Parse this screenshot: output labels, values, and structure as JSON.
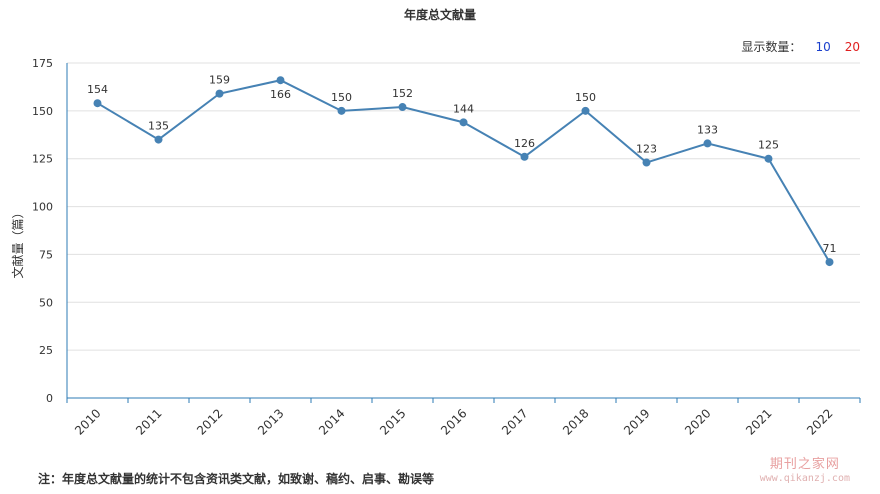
{
  "selector": {
    "label": "显示数量：",
    "options": [
      "10",
      "20"
    ],
    "colors": [
      "#1a3fcc",
      "#e02020"
    ]
  },
  "footnote": "注：年度总文献量的统计不包含资讯类文献，如致谢、稿约、启事、勘误等",
  "watermark": {
    "cn": "期刊之家网",
    "url": "www.qikanzj.com"
  },
  "chart_data": {
    "type": "line",
    "title": "年度总文献量",
    "xlabel": "",
    "ylabel": "文献量（篇）",
    "categories": [
      "2010",
      "2011",
      "2012",
      "2013",
      "2014",
      "2015",
      "2016",
      "2017",
      "2018",
      "2019",
      "2020",
      "2021",
      "2022"
    ],
    "series": [
      {
        "values": [
          154,
          135,
          159,
          166,
          150,
          152,
          144,
          126,
          150,
          123,
          133,
          125,
          71
        ],
        "color": "#4682b4"
      }
    ],
    "ylim": [
      0,
      175
    ],
    "yticks": [
      0,
      25,
      50,
      75,
      100,
      125,
      150,
      175
    ],
    "grid": true,
    "data_labels": true,
    "xtick_rotation": "rotated -45"
  }
}
